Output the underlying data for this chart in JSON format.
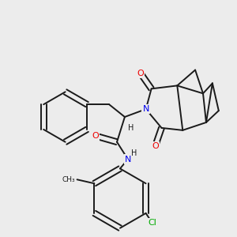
{
  "background_color": "#ececec",
  "bond_color": "#1a1a1a",
  "atom_colors": {
    "N": "#0000ee",
    "O": "#ee0000",
    "Cl": "#00aa00",
    "H": "#1a1a1a",
    "C": "#1a1a1a"
  },
  "bg_rgb": [
    0.925,
    0.925,
    0.925
  ]
}
